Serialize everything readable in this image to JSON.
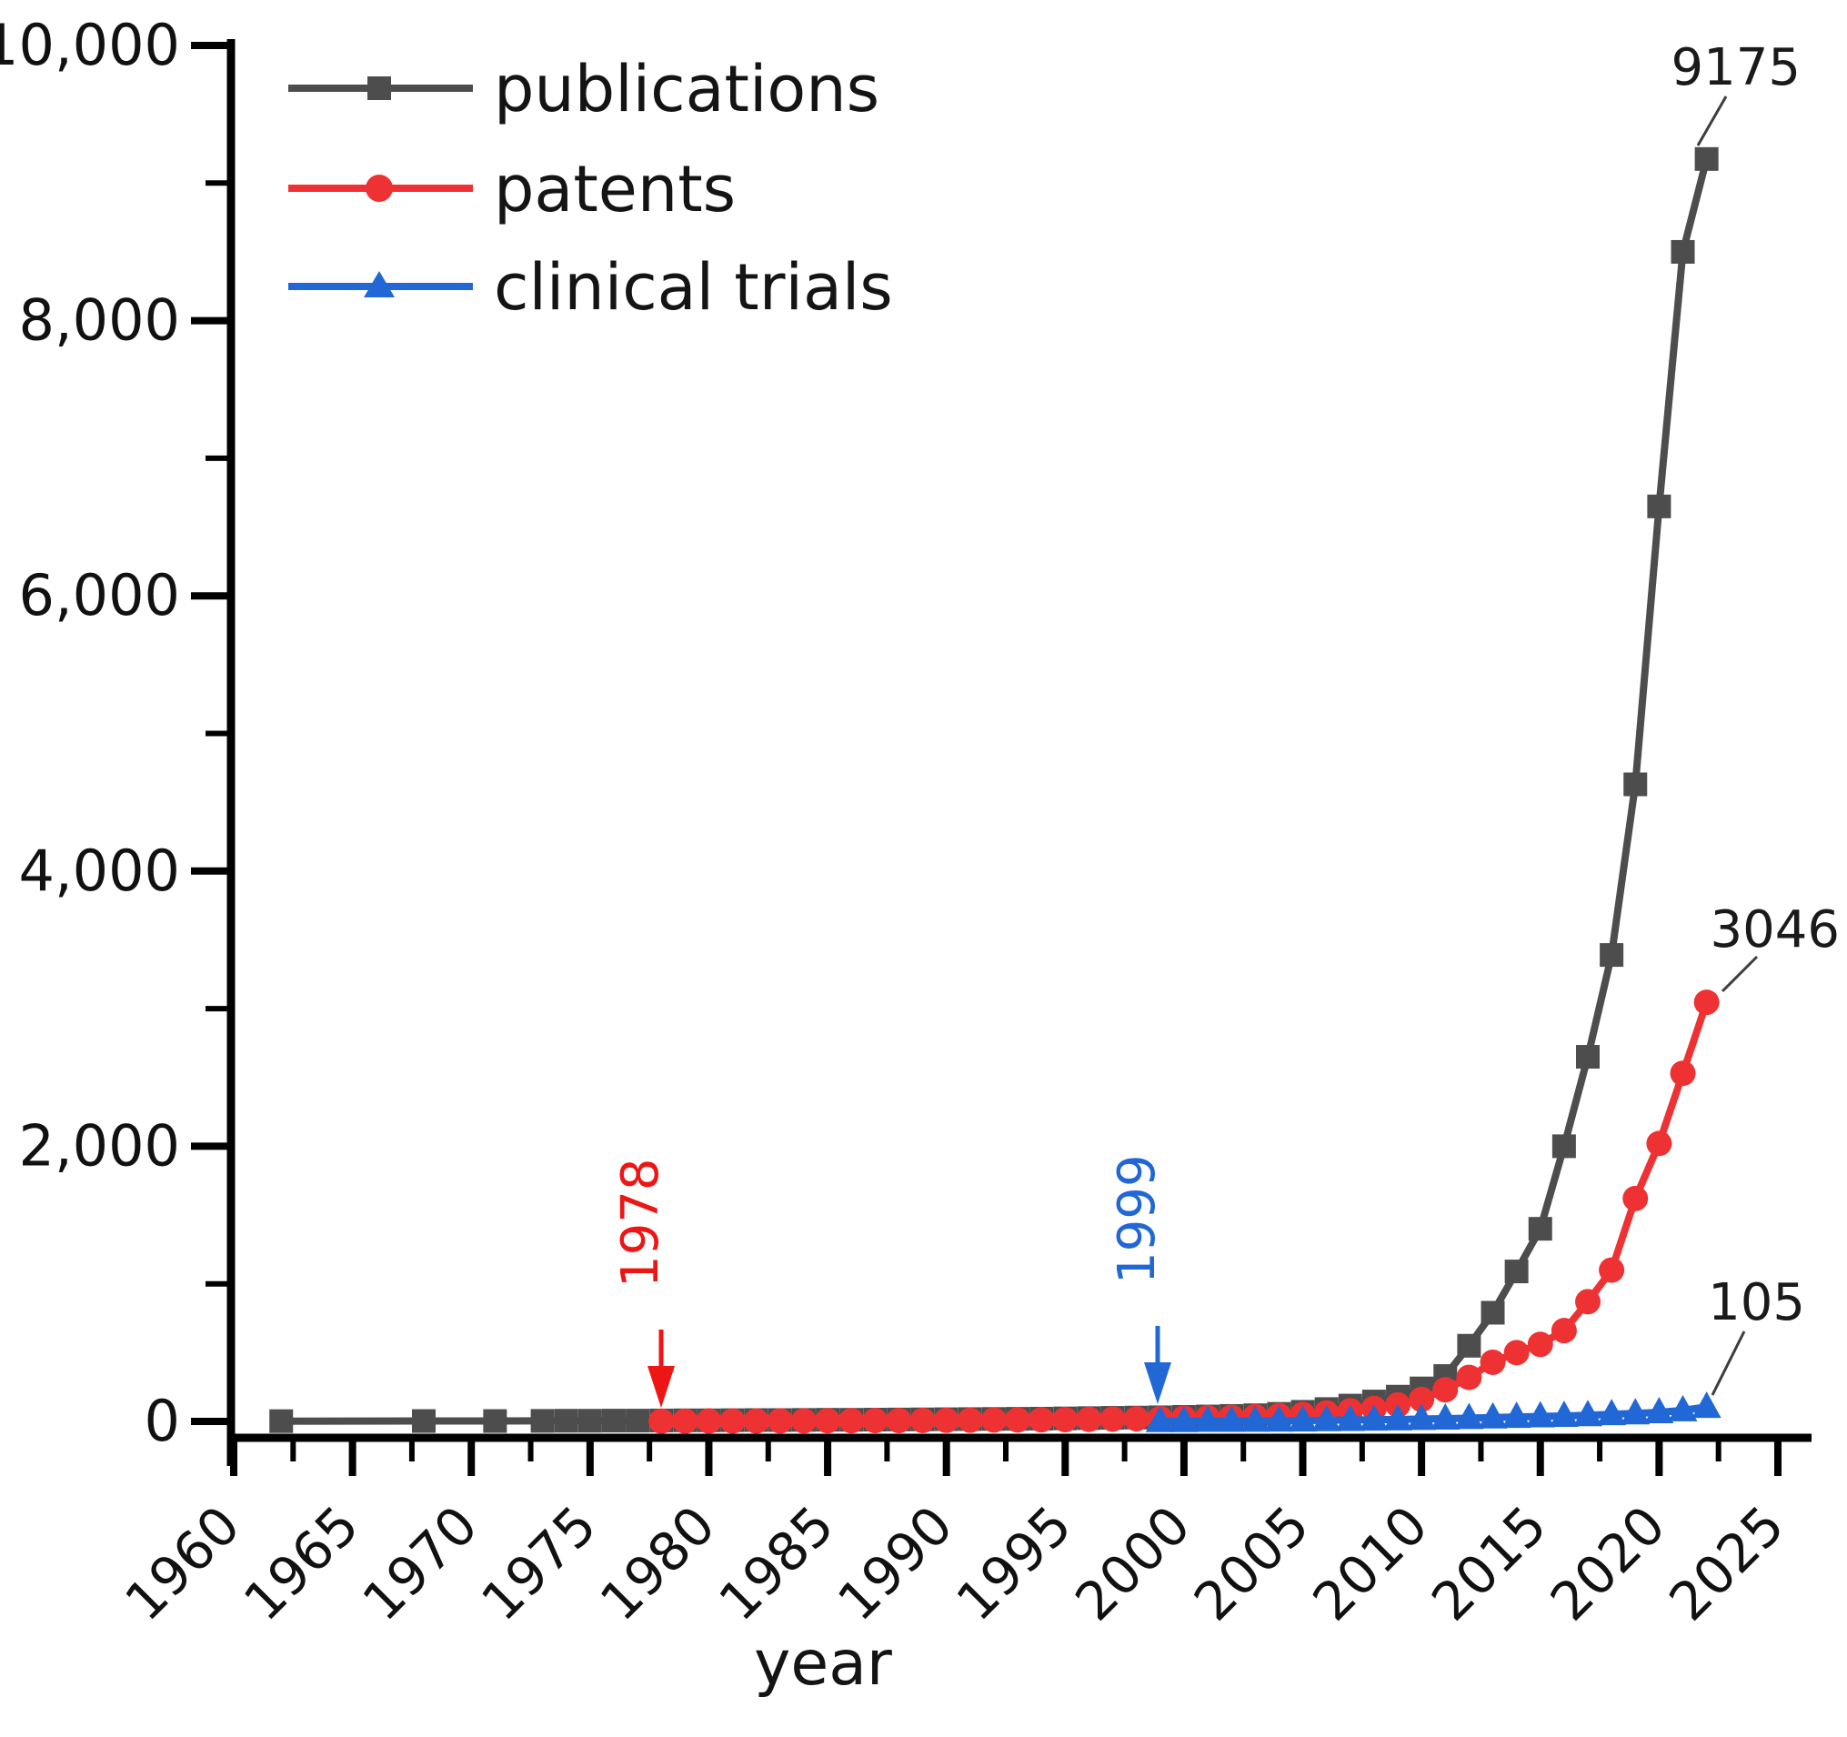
{
  "chart_data": {
    "type": "line",
    "title": "",
    "xlabel": "year",
    "ylabel": "",
    "xlim": [
      1958.8,
      2026.4
    ],
    "ylim": [
      0,
      10000
    ],
    "grid": false,
    "legend_position": "top-left",
    "x_major_ticks": [
      1960,
      1965,
      1970,
      1975,
      1980,
      1985,
      1990,
      1995,
      2000,
      2005,
      2010,
      2015,
      2020,
      2025
    ],
    "y_major_ticks": [
      0,
      2000,
      4000,
      6000,
      8000,
      10000
    ],
    "y_major_tick_labels": [
      "0",
      "2,000",
      "4,000",
      "6,000",
      "8,000",
      "10,000"
    ],
    "y_minor_ticks": [
      1000,
      3000,
      5000,
      7000,
      9000
    ],
    "series": [
      {
        "name": "publications",
        "color": "#4d4d4d",
        "marker": "square",
        "end_label": "9175",
        "points": [
          [
            1962,
            2
          ],
          [
            1968,
            3
          ],
          [
            1971,
            3
          ],
          [
            1973,
            4
          ],
          [
            1974,
            5
          ],
          [
            1975,
            5
          ],
          [
            1976,
            6
          ],
          [
            1977,
            6
          ],
          [
            1978,
            7
          ],
          [
            1979,
            8
          ],
          [
            1980,
            8
          ],
          [
            1981,
            9
          ],
          [
            1982,
            10
          ],
          [
            1983,
            10
          ],
          [
            1984,
            11
          ],
          [
            1985,
            12
          ],
          [
            1986,
            12
          ],
          [
            1987,
            13
          ],
          [
            1988,
            14
          ],
          [
            1989,
            15
          ],
          [
            1990,
            16
          ],
          [
            1991,
            17
          ],
          [
            1992,
            18
          ],
          [
            1993,
            19
          ],
          [
            1994,
            20
          ],
          [
            1995,
            22
          ],
          [
            1996,
            24
          ],
          [
            1997,
            26
          ],
          [
            1998,
            28
          ],
          [
            1999,
            30
          ],
          [
            2000,
            33
          ],
          [
            2001,
            36
          ],
          [
            2002,
            40
          ],
          [
            2003,
            45
          ],
          [
            2004,
            55
          ],
          [
            2005,
            70
          ],
          [
            2006,
            90
          ],
          [
            2007,
            115
          ],
          [
            2008,
            145
          ],
          [
            2009,
            180
          ],
          [
            2010,
            240
          ],
          [
            2011,
            330
          ],
          [
            2012,
            550
          ],
          [
            2013,
            790
          ],
          [
            2014,
            1090
          ],
          [
            2015,
            1400
          ],
          [
            2016,
            2000
          ],
          [
            2017,
            2650
          ],
          [
            2018,
            3390
          ],
          [
            2019,
            4630
          ],
          [
            2020,
            6650
          ],
          [
            2021,
            8500
          ],
          [
            2022,
            9175
          ]
        ]
      },
      {
        "name": "patents",
        "color": "#ee3233",
        "marker": "circle",
        "end_label": "3046",
        "points": [
          [
            1978,
            2
          ],
          [
            1979,
            2
          ],
          [
            1980,
            3
          ],
          [
            1981,
            3
          ],
          [
            1982,
            3
          ],
          [
            1983,
            4
          ],
          [
            1984,
            4
          ],
          [
            1985,
            5
          ],
          [
            1986,
            5
          ],
          [
            1987,
            6
          ],
          [
            1988,
            6
          ],
          [
            1989,
            7
          ],
          [
            1990,
            8
          ],
          [
            1991,
            9
          ],
          [
            1992,
            10
          ],
          [
            1993,
            11
          ],
          [
            1994,
            12
          ],
          [
            1995,
            13
          ],
          [
            1996,
            15
          ],
          [
            1997,
            17
          ],
          [
            1998,
            19
          ],
          [
            1999,
            21
          ],
          [
            2000,
            24
          ],
          [
            2001,
            27
          ],
          [
            2002,
            30
          ],
          [
            2003,
            35
          ],
          [
            2004,
            42
          ],
          [
            2005,
            50
          ],
          [
            2006,
            62
          ],
          [
            2007,
            78
          ],
          [
            2008,
            95
          ],
          [
            2009,
            120
          ],
          [
            2010,
            160
          ],
          [
            2011,
            230
          ],
          [
            2012,
            320
          ],
          [
            2013,
            430
          ],
          [
            2014,
            500
          ],
          [
            2015,
            560
          ],
          [
            2016,
            660
          ],
          [
            2017,
            870
          ],
          [
            2018,
            1100
          ],
          [
            2019,
            1620
          ],
          [
            2020,
            2020
          ],
          [
            2021,
            2530
          ],
          [
            2022,
            3046
          ]
        ]
      },
      {
        "name": "clinical trials",
        "color": "#2267d6",
        "marker": "triangle",
        "end_label": "105",
        "points": [
          [
            1999,
            2
          ],
          [
            2000,
            2
          ],
          [
            2001,
            3
          ],
          [
            2002,
            3
          ],
          [
            2003,
            4
          ],
          [
            2004,
            5
          ],
          [
            2005,
            6
          ],
          [
            2006,
            8
          ],
          [
            2007,
            10
          ],
          [
            2008,
            12
          ],
          [
            2009,
            14
          ],
          [
            2010,
            17
          ],
          [
            2011,
            20
          ],
          [
            2012,
            24
          ],
          [
            2013,
            28
          ],
          [
            2014,
            32
          ],
          [
            2015,
            36
          ],
          [
            2016,
            40
          ],
          [
            2017,
            45
          ],
          [
            2018,
            52
          ],
          [
            2019,
            58
          ],
          [
            2020,
            66
          ],
          [
            2021,
            80
          ],
          [
            2022,
            105
          ]
        ]
      }
    ],
    "annotations": [
      {
        "text": "1978",
        "color": "#ee1515",
        "year": 1978
      },
      {
        "text": "1999",
        "color": "#2267d6",
        "year": 1999
      }
    ]
  }
}
